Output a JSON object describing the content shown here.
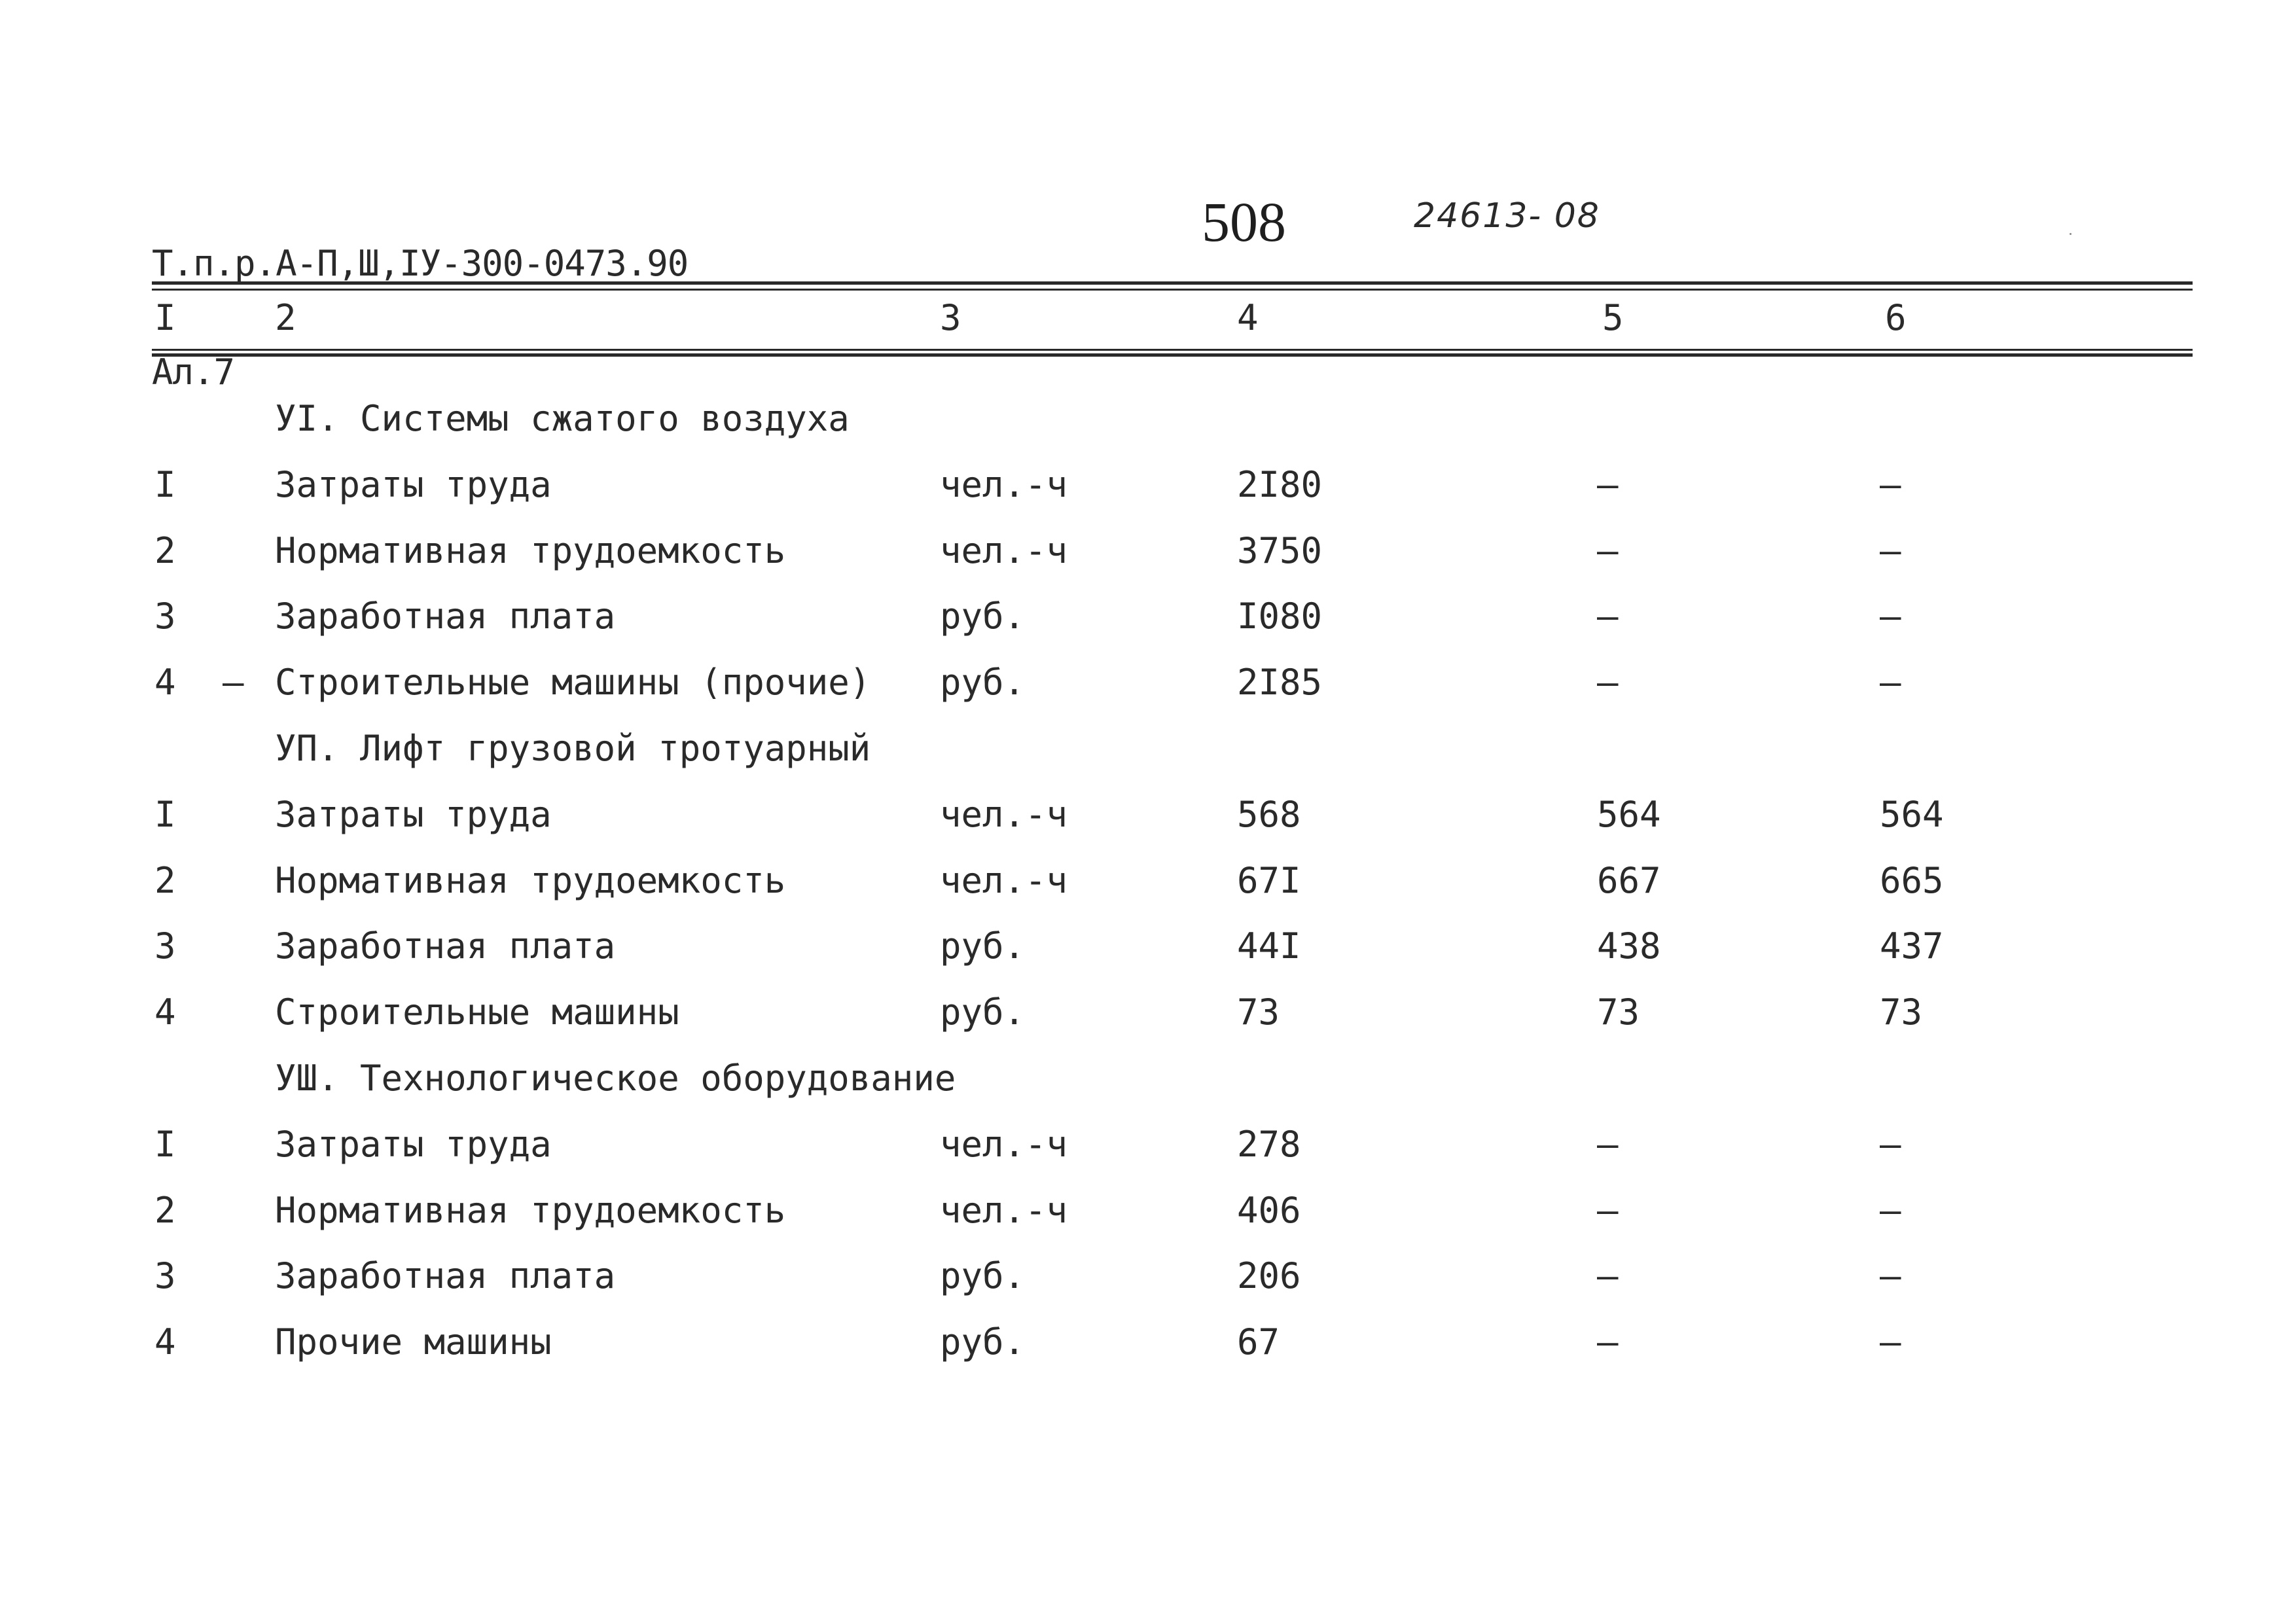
{
  "header": {
    "doc_code_line1": "Т.п.р.А-П,Ш,IУ-300-0473.90",
    "doc_code_line2": "Ал.7",
    "page_number": "508",
    "handwritten_code": "24613- 08"
  },
  "columns": [
    "I",
    "2",
    "3",
    "4",
    "5",
    "6"
  ],
  "sections": [
    {
      "title": "УI. Системы сжатого воздуха",
      "rows": [
        {
          "num": "I",
          "dash": "",
          "name": "Затраты труда",
          "unit": "чел.-ч",
          "v4": "2I80",
          "v5": "–",
          "v6": "–"
        },
        {
          "num": "2",
          "dash": "",
          "name": "Нормативная трудоемкость",
          "unit": "чел.-ч",
          "v4": "3750",
          "v5": "–",
          "v6": "–"
        },
        {
          "num": "3",
          "dash": "",
          "name": "Заработная плата",
          "unit": "руб.",
          "v4": "I080",
          "v5": "–",
          "v6": "–"
        },
        {
          "num": "4",
          "dash": "–",
          "name": "Строительные машины (прочие)",
          "unit": "руб.",
          "v4": "2I85",
          "v5": "–",
          "v6": "–"
        }
      ]
    },
    {
      "title": "УП. Лифт грузовой тротуарный",
      "rows": [
        {
          "num": "I",
          "dash": "",
          "name": "Затраты труда",
          "unit": "чел.-ч",
          "v4": "568",
          "v5": "564",
          "v6": "564"
        },
        {
          "num": "2",
          "dash": "",
          "name": "Нормативная трудоемкость",
          "unit": "чел.-ч",
          "v4": "67I",
          "v5": "667",
          "v6": "665"
        },
        {
          "num": "3",
          "dash": "",
          "name": "Заработная плата",
          "unit": "руб.",
          "v4": "44I",
          "v5": "438",
          "v6": "437"
        },
        {
          "num": "4",
          "dash": "",
          "name": "Строительные машины",
          "unit": "руб.",
          "v4": "73",
          "v5": "73",
          "v6": "73"
        }
      ]
    },
    {
      "title": "УШ. Технологическое оборудование",
      "rows": [
        {
          "num": "I",
          "dash": "",
          "name": "Затраты труда",
          "unit": "чел.-ч",
          "v4": "278",
          "v5": "–",
          "v6": "–"
        },
        {
          "num": "2",
          "dash": "",
          "name": "Нормативная трудоемкость",
          "unit": "чел.-ч",
          "v4": "406",
          "v5": "–",
          "v6": "–"
        },
        {
          "num": "3",
          "dash": "",
          "name": "Заработная плата",
          "unit": "руб.",
          "v4": "206",
          "v5": "–",
          "v6": "–"
        },
        {
          "num": "4",
          "dash": "",
          "name": "Прочие машины",
          "unit": "руб.",
          "v4": "67",
          "v5": "–",
          "v6": "–"
        }
      ]
    }
  ]
}
